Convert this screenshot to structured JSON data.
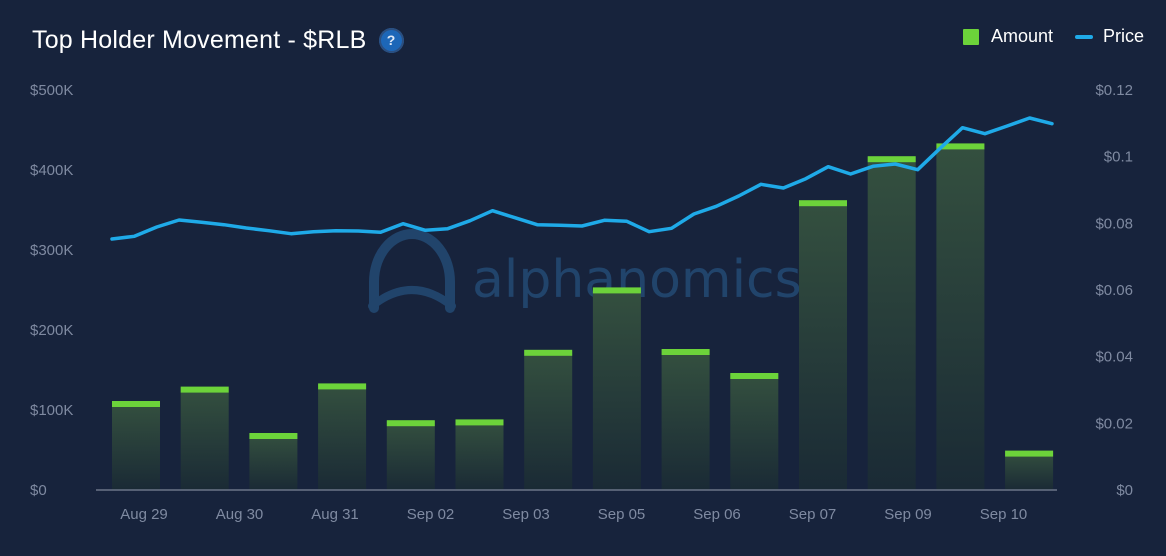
{
  "header": {
    "title": "Top Holder Movement - $RLB",
    "help_glyph": "?"
  },
  "legend": {
    "amount_label": "Amount",
    "price_label": "Price"
  },
  "watermark": {
    "text": "alphanomics"
  },
  "colors": {
    "background": "#17233c",
    "amount": "#6cd33a",
    "price": "#1faae8",
    "bar_fill_top": "#34503f",
    "bar_fill_bottom": "#1a2a35"
  },
  "chart_data": {
    "type": "bar",
    "title": "Top Holder Movement - $RLB",
    "x_tick_labels": [
      "Aug 29",
      "Aug 30",
      "Aug 31",
      "Sep 02",
      "Sep 03",
      "Sep 05",
      "Sep 06",
      "Sep 07",
      "Sep 09",
      "Sep 10"
    ],
    "y_left": {
      "range": [
        0,
        500000
      ],
      "ticks": [
        0,
        100000,
        200000,
        300000,
        400000,
        500000
      ],
      "tick_labels": [
        "$0",
        "$100K",
        "$200K",
        "$300K",
        "$400K",
        "$500K"
      ]
    },
    "y_right": {
      "range": [
        0,
        0.12
      ],
      "ticks": [
        0,
        0.02,
        0.04,
        0.06,
        0.08,
        0.1,
        0.12
      ],
      "tick_labels": [
        "$0",
        "$0.02",
        "$0.04",
        "$0.06",
        "$0.08",
        "$0.1",
        "$0.12"
      ]
    },
    "grid": false,
    "legend_position": "top-right",
    "series": [
      {
        "name": "Amount",
        "type": "bar",
        "axis": "left",
        "values": [
          110000,
          128000,
          70000,
          132000,
          86000,
          87000,
          174000,
          252000,
          175000,
          145000,
          361000,
          416000,
          432000,
          48000
        ]
      },
      {
        "name": "Price",
        "type": "line",
        "axis": "right",
        "values": [
          0.0753,
          0.0761,
          0.0789,
          0.081,
          0.0803,
          0.0796,
          0.0786,
          0.0778,
          0.0769,
          0.0775,
          0.0778,
          0.0777,
          0.0773,
          0.0799,
          0.0779,
          0.0784,
          0.0808,
          0.0838,
          0.0817,
          0.0796,
          0.0794,
          0.0792,
          0.0809,
          0.0806,
          0.0775,
          0.0785,
          0.0828,
          0.0851,
          0.0882,
          0.0917,
          0.0906,
          0.0934,
          0.097,
          0.0948,
          0.0971,
          0.0978,
          0.0961,
          0.1025,
          0.1087,
          0.1069,
          0.1092,
          0.1116,
          0.1099
        ]
      }
    ]
  }
}
